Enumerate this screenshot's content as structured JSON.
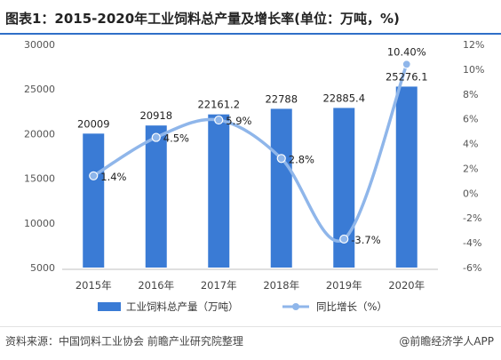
{
  "title": "图表1：2015-2020年工业饲料总产量及增长率(单位：万吨，%)",
  "source": "资料来源：中国饲料工业协会 前瞻产业研究院整理",
  "brand": "@前瞻经济学人APP",
  "colors": {
    "bar": "#3a7bd5",
    "line": "#8fb6ea",
    "marker": "#8fb6ea",
    "accent": "#2f6fc8"
  },
  "chart_data": {
    "type": "bar",
    "categories": [
      "2015年",
      "2016年",
      "2017年",
      "2018年",
      "2019年",
      "2020年"
    ],
    "series": [
      {
        "name": "工业饲料总产量（万吨）",
        "type": "bar",
        "axis": "left",
        "values": [
          20009,
          20918,
          22161.2,
          22788,
          22885.4,
          25276.1
        ],
        "labels": [
          "20009",
          "20918",
          "22161.2",
          "22788",
          "22885.4",
          "25276.1"
        ]
      },
      {
        "name": "同比增长（%）",
        "type": "line",
        "axis": "right",
        "smooth": true,
        "values": [
          1.4,
          4.5,
          5.9,
          2.8,
          -3.7,
          10.4
        ],
        "labels": [
          "1.4%",
          "4.5%",
          "5.9%",
          "2.8%",
          "-3.7%",
          "10.40%"
        ]
      }
    ],
    "y_left": {
      "min": 5000,
      "max": 30000,
      "ticks": [
        "5000",
        "10000",
        "15000",
        "20000",
        "25000",
        "30000"
      ]
    },
    "y_right": {
      "min": -6,
      "max": 12,
      "ticks": [
        "-6%",
        "-4%",
        "-2%",
        "0%",
        "2%",
        "4%",
        "6%",
        "8%",
        "10%",
        "12%"
      ]
    },
    "legend_position": "bottom",
    "grid": false
  }
}
